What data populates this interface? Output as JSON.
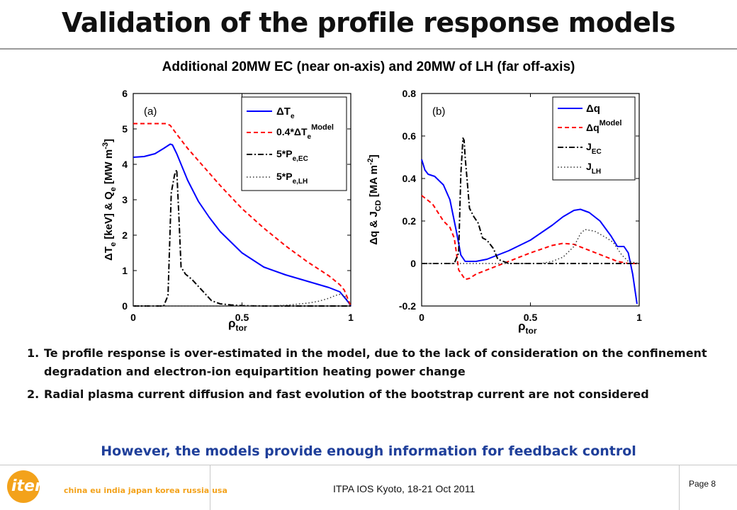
{
  "slide": {
    "title": "Validation of the profile response models",
    "subtitle": "Additional 20MW EC (near on-axis) and 20MW of LH (far off-axis)",
    "bullets": [
      {
        "num": "1.",
        "text": "Te profile response is over-estimated in the model, due to the lack of consideration on the confinement degradation and electron-ion equipartition heating power change"
      },
      {
        "num": "2.",
        "text": "Radial plasma current diffusion and fast evolution of the bootstrap current are not considered"
      }
    ],
    "conclusion": "However, the models provide enough information for feedback control"
  },
  "footer": {
    "logo_word": "iter",
    "logo_tagline": "china eu india japan korea russia usa",
    "event": "ITPA IOS Kyoto, 18-21 Oct 2011",
    "page": "Page 8"
  },
  "chart_data": [
    {
      "type": "line",
      "panel_label": "(a)",
      "xlim": [
        0,
        1
      ],
      "ylim": [
        0,
        6
      ],
      "xticks": [
        "0",
        "0.5",
        "1"
      ],
      "yticks": [
        "0",
        "1",
        "2",
        "3",
        "4",
        "5",
        "6"
      ],
      "xlabel": "ρ_tor",
      "ylabel": "ΔT_e [keV] & Q_e [MW m^-3]",
      "legend_position": "top-right",
      "series": [
        {
          "name": "ΔT_e",
          "color": "#0000ff",
          "dash": "solid",
          "x": [
            0,
            0.05,
            0.1,
            0.14,
            0.17,
            0.18,
            0.2,
            0.25,
            0.3,
            0.35,
            0.4,
            0.5,
            0.6,
            0.7,
            0.8,
            0.9,
            0.95,
            0.97,
            0.99,
            1.0
          ],
          "y": [
            4.2,
            4.22,
            4.3,
            4.45,
            4.57,
            4.55,
            4.3,
            3.55,
            2.95,
            2.5,
            2.1,
            1.5,
            1.1,
            0.88,
            0.7,
            0.52,
            0.4,
            0.25,
            0.1,
            0.0
          ]
        },
        {
          "name": "0.4*ΔT_e^Model",
          "color": "#ff0000",
          "dash": "6,4",
          "x": [
            0,
            0.05,
            0.1,
            0.15,
            0.17,
            0.2,
            0.25,
            0.3,
            0.4,
            0.5,
            0.6,
            0.7,
            0.8,
            0.9,
            0.95,
            0.97,
            0.99,
            1.0
          ],
          "y": [
            5.15,
            5.15,
            5.15,
            5.15,
            5.1,
            4.85,
            4.45,
            4.1,
            3.4,
            2.75,
            2.2,
            1.7,
            1.25,
            0.85,
            0.6,
            0.45,
            0.15,
            0.0
          ]
        },
        {
          "name": "5*P_e,EC",
          "color": "#000000",
          "dash": "8,3,2,3",
          "x": [
            0,
            0.14,
            0.16,
            0.175,
            0.19,
            0.2,
            0.21,
            0.22,
            0.24,
            0.27,
            0.3,
            0.33,
            0.36,
            0.4,
            0.45,
            0.5,
            0.6,
            1.0
          ],
          "y": [
            0,
            0,
            0.3,
            3.2,
            3.7,
            3.85,
            2.5,
            1.1,
            0.9,
            0.75,
            0.55,
            0.35,
            0.15,
            0.06,
            0.03,
            0.01,
            0.0,
            0.0
          ]
        },
        {
          "name": "5*P_e,LH",
          "color": "#333333",
          "dash": "1.5,3",
          "x": [
            0,
            0.6,
            0.7,
            0.75,
            0.8,
            0.85,
            0.9,
            0.93,
            0.95,
            0.97,
            0.99,
            1.0
          ],
          "y": [
            0,
            0,
            0.02,
            0.05,
            0.08,
            0.13,
            0.22,
            0.3,
            0.33,
            0.3,
            0.1,
            0.0
          ]
        }
      ]
    },
    {
      "type": "line",
      "panel_label": "(b)",
      "xlim": [
        0,
        1
      ],
      "ylim": [
        -0.2,
        0.8
      ],
      "xticks": [
        "0",
        "0.5",
        "1"
      ],
      "yticks": [
        "-0.2",
        "0",
        "0.2",
        "0.4",
        "0.6",
        "0.8"
      ],
      "xlabel": "ρ_tor",
      "ylabel": "Δq & J_CD [MA m^-2]",
      "legend_position": "top-right",
      "series": [
        {
          "name": "Δq",
          "color": "#0000ff",
          "dash": "solid",
          "x": [
            0,
            0.015,
            0.03,
            0.06,
            0.1,
            0.13,
            0.16,
            0.18,
            0.2,
            0.22,
            0.25,
            0.3,
            0.4,
            0.5,
            0.6,
            0.65,
            0.7,
            0.73,
            0.77,
            0.82,
            0.87,
            0.9,
            0.92,
            0.93,
            0.95,
            0.97,
            0.99
          ],
          "y": [
            0.49,
            0.44,
            0.42,
            0.41,
            0.37,
            0.3,
            0.15,
            0.04,
            0.01,
            0.01,
            0.01,
            0.02,
            0.06,
            0.11,
            0.18,
            0.22,
            0.25,
            0.255,
            0.24,
            0.2,
            0.13,
            0.08,
            0.08,
            0.08,
            0.05,
            -0.05,
            -0.19
          ]
        },
        {
          "name": "Δq^Model",
          "color": "#ff0000",
          "dash": "6,4",
          "x": [
            0,
            0.05,
            0.1,
            0.13,
            0.15,
            0.16,
            0.17,
            0.19,
            0.2,
            0.22,
            0.25,
            0.3,
            0.4,
            0.5,
            0.6,
            0.65,
            0.7,
            0.75,
            0.8,
            0.85,
            0.9,
            0.95,
            1.0
          ],
          "y": [
            0.32,
            0.28,
            0.2,
            0.17,
            0.12,
            0.05,
            -0.03,
            -0.06,
            -0.075,
            -0.07,
            -0.05,
            -0.03,
            0.01,
            0.05,
            0.085,
            0.095,
            0.09,
            0.07,
            0.05,
            0.03,
            0.01,
            0.0,
            0.0
          ]
        },
        {
          "name": "J_EC",
          "color": "#000000",
          "dash": "8,3,2,3",
          "x": [
            0,
            0.15,
            0.17,
            0.18,
            0.19,
            0.195,
            0.2,
            0.21,
            0.22,
            0.24,
            0.26,
            0.28,
            0.3,
            0.33,
            0.35,
            0.4,
            0.5,
            1.0
          ],
          "y": [
            0,
            0,
            0.05,
            0.42,
            0.59,
            0.58,
            0.5,
            0.38,
            0.26,
            0.22,
            0.19,
            0.12,
            0.11,
            0.07,
            0.02,
            0.0,
            0.0,
            0.0
          ]
        },
        {
          "name": "J_LH",
          "color": "#333333",
          "dash": "1.5,3",
          "x": [
            0,
            0.55,
            0.6,
            0.65,
            0.7,
            0.73,
            0.75,
            0.78,
            0.8,
            0.85,
            0.88,
            0.9,
            0.92,
            0.95,
            1.0
          ],
          "y": [
            0,
            0,
            0.01,
            0.03,
            0.08,
            0.14,
            0.16,
            0.155,
            0.15,
            0.12,
            0.1,
            0.07,
            0.04,
            0.01,
            0.0
          ]
        }
      ]
    }
  ]
}
